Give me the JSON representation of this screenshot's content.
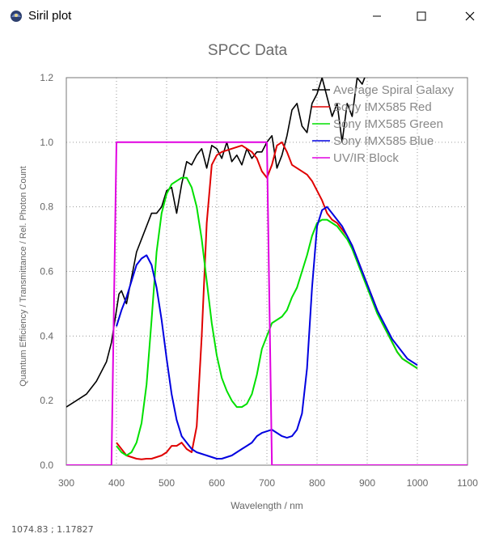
{
  "window": {
    "title": "Siril plot"
  },
  "chart_data": {
    "type": "line",
    "title": "SPCC Data",
    "xlabel": "Wavelength / nm",
    "ylabel": "Quantum Efficiency / Transmittance / Rel. Photon Count",
    "xlim": [
      300,
      1100
    ],
    "ylim": [
      0,
      1.2
    ],
    "xticks": [
      "300",
      "400",
      "500",
      "600",
      "700",
      "800",
      "900",
      "1000",
      "1100"
    ],
    "yticks": [
      "0.0",
      "0.2",
      "0.4",
      "0.6",
      "0.8",
      "1.0",
      "1.2"
    ],
    "grid": true,
    "legend_position": "top-right",
    "series": [
      {
        "name": "Average Spiral Galaxy",
        "color": "#000000",
        "x": [
          300,
          320,
          340,
          360,
          380,
          390,
          395,
          400,
          405,
          410,
          420,
          430,
          440,
          450,
          460,
          470,
          480,
          490,
          500,
          510,
          520,
          530,
          540,
          550,
          560,
          570,
          580,
          590,
          600,
          610,
          620,
          630,
          640,
          650,
          660,
          670,
          680,
          690,
          700,
          710,
          720,
          730,
          740,
          750,
          760,
          770,
          780,
          790,
          800,
          810,
          820,
          830,
          840,
          850,
          860,
          870,
          880,
          890,
          900,
          910,
          920,
          930,
          940,
          950
        ],
        "y": [
          0.18,
          0.2,
          0.22,
          0.26,
          0.32,
          0.38,
          0.43,
          0.48,
          0.53,
          0.54,
          0.5,
          0.58,
          0.66,
          0.7,
          0.74,
          0.78,
          0.78,
          0.8,
          0.85,
          0.86,
          0.78,
          0.87,
          0.94,
          0.93,
          0.96,
          0.98,
          0.92,
          0.99,
          0.98,
          0.95,
          1.0,
          0.94,
          0.96,
          0.93,
          0.98,
          0.95,
          0.97,
          0.97,
          1.0,
          1.02,
          0.92,
          0.96,
          1.02,
          1.1,
          1.12,
          1.05,
          1.03,
          1.12,
          1.15,
          1.2,
          1.14,
          1.08,
          1.12,
          1.0,
          1.12,
          1.08,
          1.2,
          1.18,
          1.22,
          1.24,
          1.25,
          1.24,
          1.23,
          1.22
        ]
      },
      {
        "name": "Sony IMX585 Red",
        "color": "#e00000",
        "x": [
          400,
          410,
          420,
          430,
          440,
          450,
          460,
          470,
          480,
          490,
          500,
          510,
          520,
          530,
          540,
          550,
          560,
          570,
          580,
          590,
          600,
          610,
          620,
          630,
          640,
          650,
          660,
          670,
          680,
          690,
          700,
          710,
          720,
          730,
          740,
          750,
          760,
          770,
          780,
          790,
          800,
          810,
          820,
          830,
          840,
          850,
          860,
          870,
          880,
          890,
          900,
          910,
          920,
          930,
          940,
          950,
          960,
          970,
          980,
          990,
          1000
        ],
        "y": [
          0.07,
          0.05,
          0.03,
          0.025,
          0.02,
          0.018,
          0.02,
          0.02,
          0.025,
          0.03,
          0.04,
          0.06,
          0.06,
          0.07,
          0.05,
          0.04,
          0.12,
          0.4,
          0.75,
          0.93,
          0.96,
          0.97,
          0.975,
          0.98,
          0.985,
          0.99,
          0.98,
          0.97,
          0.95,
          0.91,
          0.89,
          0.93,
          0.99,
          1.0,
          0.97,
          0.93,
          0.92,
          0.91,
          0.9,
          0.88,
          0.85,
          0.82,
          0.78,
          0.76,
          0.75,
          0.73,
          0.71,
          0.68,
          0.64,
          0.6,
          0.56,
          0.52,
          0.48,
          0.44,
          0.41,
          0.38,
          0.35,
          0.33,
          0.32,
          0.31,
          0.3
        ]
      },
      {
        "name": "Sony IMX585 Green",
        "color": "#00e000",
        "x": [
          400,
          410,
          420,
          430,
          440,
          450,
          460,
          470,
          480,
          490,
          500,
          510,
          520,
          530,
          540,
          550,
          560,
          570,
          580,
          590,
          600,
          610,
          620,
          630,
          640,
          650,
          660,
          670,
          680,
          690,
          700,
          710,
          720,
          730,
          740,
          750,
          760,
          770,
          780,
          790,
          800,
          810,
          820,
          830,
          840,
          850,
          860,
          870,
          880,
          890,
          900,
          910,
          920,
          930,
          940,
          950,
          960,
          970,
          980,
          990,
          1000
        ],
        "y": [
          0.06,
          0.04,
          0.03,
          0.04,
          0.07,
          0.13,
          0.25,
          0.45,
          0.66,
          0.78,
          0.84,
          0.87,
          0.88,
          0.89,
          0.89,
          0.86,
          0.8,
          0.7,
          0.57,
          0.44,
          0.34,
          0.27,
          0.23,
          0.2,
          0.18,
          0.18,
          0.19,
          0.22,
          0.28,
          0.36,
          0.4,
          0.44,
          0.45,
          0.46,
          0.48,
          0.52,
          0.55,
          0.6,
          0.65,
          0.71,
          0.75,
          0.76,
          0.76,
          0.75,
          0.74,
          0.72,
          0.7,
          0.67,
          0.63,
          0.59,
          0.55,
          0.51,
          0.47,
          0.44,
          0.41,
          0.38,
          0.35,
          0.33,
          0.32,
          0.31,
          0.3
        ]
      },
      {
        "name": "Sony IMX585 Blue",
        "color": "#0000e0",
        "x": [
          400,
          410,
          420,
          430,
          440,
          450,
          460,
          470,
          480,
          490,
          500,
          510,
          520,
          530,
          540,
          550,
          560,
          570,
          580,
          590,
          600,
          610,
          620,
          630,
          640,
          650,
          660,
          670,
          680,
          690,
          700,
          710,
          720,
          730,
          740,
          750,
          760,
          770,
          780,
          790,
          800,
          810,
          820,
          830,
          840,
          850,
          860,
          870,
          880,
          890,
          900,
          910,
          920,
          930,
          940,
          950,
          960,
          970,
          980,
          990,
          1000
        ],
        "y": [
          0.43,
          0.48,
          0.52,
          0.57,
          0.62,
          0.64,
          0.65,
          0.62,
          0.55,
          0.45,
          0.33,
          0.22,
          0.14,
          0.09,
          0.07,
          0.05,
          0.04,
          0.035,
          0.03,
          0.025,
          0.02,
          0.02,
          0.025,
          0.03,
          0.04,
          0.05,
          0.06,
          0.07,
          0.09,
          0.1,
          0.105,
          0.11,
          0.1,
          0.09,
          0.085,
          0.09,
          0.11,
          0.16,
          0.3,
          0.55,
          0.74,
          0.79,
          0.8,
          0.78,
          0.76,
          0.74,
          0.71,
          0.68,
          0.64,
          0.6,
          0.56,
          0.52,
          0.48,
          0.45,
          0.42,
          0.39,
          0.37,
          0.35,
          0.33,
          0.32,
          0.31
        ]
      },
      {
        "name": "UV/IR Block",
        "color": "#e000e0",
        "x": [
          300,
          390,
          400,
          700,
          710,
          1100
        ],
        "y": [
          0.0,
          0.0,
          1.0,
          1.0,
          0.0,
          0.0
        ]
      }
    ]
  },
  "status": {
    "coords": "1074.83 ;  1.17827"
  }
}
